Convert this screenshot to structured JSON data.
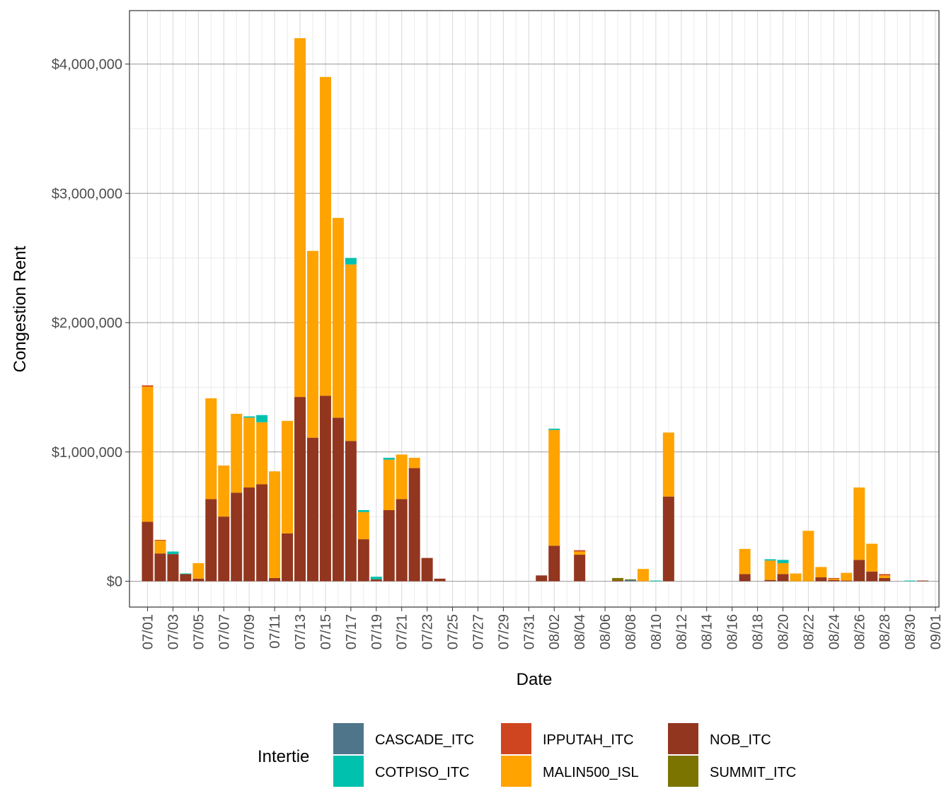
{
  "chart_data": {
    "type": "bar",
    "stacked": true,
    "xlabel": "Date",
    "ylabel": "Congestion Rent",
    "x_tick_labels": [
      "07/01",
      "07/03",
      "07/05",
      "07/07",
      "07/09",
      "07/11",
      "07/13",
      "07/15",
      "07/17",
      "07/19",
      "07/21",
      "07/23",
      "07/25",
      "07/27",
      "07/29",
      "07/31",
      "08/02",
      "08/04",
      "08/06",
      "08/08",
      "08/10",
      "08/12",
      "08/14",
      "08/16",
      "08/18",
      "08/20",
      "08/22",
      "08/24",
      "08/26",
      "08/28",
      "08/30",
      "09/01"
    ],
    "y_tick_labels": [
      "$0",
      "$1,000,000",
      "$2,000,000",
      "$3,000,000",
      "$4,000,000"
    ],
    "y_tick_values": [
      0,
      1000000,
      2000000,
      3000000,
      4000000
    ],
    "ylim": [
      -200000,
      4400000
    ],
    "grid": true,
    "legend_position": "bottom",
    "legend_title": "Intertie",
    "categories": [
      "07/01",
      "07/02",
      "07/03",
      "07/04",
      "07/05",
      "07/06",
      "07/07",
      "07/08",
      "07/09",
      "07/10",
      "07/11",
      "07/12",
      "07/13",
      "07/14",
      "07/15",
      "07/16",
      "07/17",
      "07/18",
      "07/19",
      "07/20",
      "07/21",
      "07/22",
      "07/23",
      "07/24",
      "07/25",
      "07/26",
      "07/27",
      "07/28",
      "07/29",
      "07/30",
      "07/31",
      "08/01",
      "08/02",
      "08/03",
      "08/04",
      "08/05",
      "08/06",
      "08/07",
      "08/08",
      "08/09",
      "08/10",
      "08/11",
      "08/12",
      "08/13",
      "08/14",
      "08/15",
      "08/16",
      "08/17",
      "08/18",
      "08/19",
      "08/20",
      "08/21",
      "08/22",
      "08/23",
      "08/24",
      "08/25",
      "08/26",
      "08/27",
      "08/28",
      "08/29",
      "08/30",
      "08/31"
    ],
    "series": [
      {
        "name": "NOB_ITC",
        "color": "#93361f",
        "values": [
          460000,
          215000,
          210000,
          55000,
          20000,
          635000,
          500000,
          685000,
          725000,
          750000,
          25000,
          370000,
          1425000,
          1110000,
          1435000,
          1265000,
          1085000,
          325000,
          15000,
          550000,
          635000,
          875000,
          180000,
          20000,
          0,
          0,
          0,
          0,
          0,
          0,
          0,
          45000,
          275000,
          0,
          205000,
          0,
          0,
          5000,
          0,
          0,
          0,
          655000,
          0,
          0,
          0,
          0,
          0,
          55000,
          0,
          10000,
          55000,
          0,
          0,
          30000,
          10000,
          5000,
          165000,
          75000,
          25000,
          0,
          0,
          5000
        ]
      },
      {
        "name": "MALIN500_ISL",
        "color": "#ffa300",
        "values": [
          1045000,
          100000,
          0,
          0,
          120000,
          780000,
          395000,
          610000,
          540000,
          480000,
          825000,
          870000,
          2775000,
          1445000,
          2465000,
          1545000,
          1365000,
          210000,
          0,
          390000,
          345000,
          80000,
          0,
          0,
          0,
          0,
          0,
          0,
          0,
          0,
          0,
          0,
          895000,
          0,
          25000,
          0,
          0,
          0,
          0,
          95000,
          0,
          495000,
          0,
          0,
          0,
          0,
          0,
          195000,
          0,
          150000,
          85000,
          60000,
          390000,
          80000,
          10000,
          60000,
          560000,
          215000,
          20000,
          0,
          0,
          0
        ]
      },
      {
        "name": "IPPUTAH_ITC",
        "color": "#cf4520",
        "values": [
          10000,
          5000,
          0,
          0,
          0,
          0,
          0,
          0,
          0,
          0,
          0,
          0,
          0,
          0,
          0,
          0,
          0,
          0,
          0,
          0,
          0,
          0,
          0,
          0,
          0,
          0,
          0,
          0,
          0,
          0,
          0,
          0,
          0,
          0,
          10000,
          0,
          0,
          0,
          0,
          0,
          0,
          0,
          0,
          0,
          0,
          0,
          0,
          0,
          0,
          0,
          0,
          0,
          0,
          0,
          5000,
          0,
          0,
          0,
          10000,
          0,
          0,
          0
        ]
      },
      {
        "name": "COTPISO_ITC",
        "color": "#00c0ae",
        "values": [
          0,
          0,
          20000,
          5000,
          0,
          0,
          0,
          0,
          10000,
          55000,
          0,
          0,
          0,
          0,
          0,
          0,
          50000,
          15000,
          20000,
          15000,
          0,
          0,
          0,
          0,
          0,
          0,
          0,
          0,
          0,
          0,
          0,
          0,
          10000,
          0,
          0,
          0,
          0,
          0,
          0,
          0,
          5000,
          0,
          0,
          0,
          0,
          0,
          0,
          0,
          0,
          10000,
          25000,
          0,
          0,
          0,
          0,
          0,
          0,
          0,
          0,
          0,
          5000,
          0
        ]
      },
      {
        "name": "CASCADE_ITC",
        "color": "#4f758b",
        "values": [
          0,
          0,
          0,
          0,
          0,
          0,
          0,
          0,
          0,
          0,
          0,
          0,
          0,
          0,
          0,
          0,
          0,
          0,
          0,
          0,
          0,
          0,
          0,
          0,
          0,
          0,
          0,
          0,
          0,
          0,
          0,
          0,
          0,
          0,
          0,
          0,
          0,
          0,
          10000,
          0,
          0,
          0,
          0,
          0,
          0,
          0,
          0,
          0,
          0,
          0,
          0,
          0,
          0,
          0,
          0,
          0,
          0,
          0,
          0,
          0,
          0,
          0
        ]
      },
      {
        "name": "SUMMIT_ITC",
        "color": "#7c7400",
        "values": [
          0,
          0,
          0,
          0,
          0,
          0,
          0,
          0,
          0,
          0,
          0,
          0,
          0,
          0,
          0,
          0,
          0,
          0,
          0,
          0,
          0,
          0,
          0,
          0,
          0,
          0,
          0,
          0,
          0,
          0,
          0,
          0,
          0,
          0,
          0,
          0,
          0,
          20000,
          5000,
          0,
          0,
          0,
          0,
          0,
          0,
          0,
          0,
          0,
          0,
          0,
          0,
          0,
          0,
          0,
          0,
          0,
          0,
          0,
          0,
          0,
          0,
          0
        ]
      }
    ],
    "legend_order": [
      "CASCADE_ITC",
      "COTPISO_ITC",
      "IPPUTAH_ITC",
      "MALIN500_ISL",
      "NOB_ITC",
      "SUMMIT_ITC"
    ]
  }
}
